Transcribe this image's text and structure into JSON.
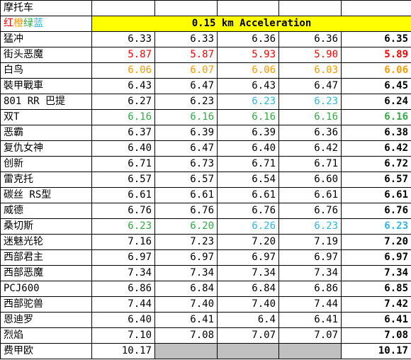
{
  "header": {
    "title": "摩托车"
  },
  "legend": [
    {
      "text": "红",
      "color": "#ff0000"
    },
    {
      "text": "橙",
      "color": "#ff9900"
    },
    {
      "text": "绿",
      "color": "#33aa44"
    },
    {
      "text": "蓝",
      "color": "#33b5e5"
    }
  ],
  "band_title": "0.15 km Acceleration",
  "colors": {
    "black": "#000000",
    "red": "#ff0000",
    "orange": "#ff9900",
    "green": "#33aa44",
    "blue": "#33b5e5",
    "band": "#ffff00",
    "gray": "#c0c0c0"
  },
  "rows": [
    {
      "name": "猛冲",
      "values": [
        "6.33",
        "6.33",
        "6.36",
        "6.36"
      ],
      "colors": [
        "black",
        "black",
        "black",
        "black"
      ],
      "final": "6.35",
      "final_color": "black"
    },
    {
      "name": "街头恶魔",
      "values": [
        "5.87",
        "5.87",
        "5.93",
        "5.90"
      ],
      "colors": [
        "red",
        "red",
        "red",
        "red"
      ],
      "final": "5.89",
      "final_color": "red"
    },
    {
      "name": "白鸟",
      "values": [
        "6.06",
        "6.07",
        "6.06",
        "6.03"
      ],
      "colors": [
        "orange",
        "orange",
        "orange",
        "orange"
      ],
      "final": "6.06",
      "final_color": "orange"
    },
    {
      "name": "裝甲戰車",
      "values": [
        "6.43",
        "6.47",
        "6.43",
        "6.47"
      ],
      "colors": [
        "black",
        "black",
        "black",
        "black"
      ],
      "final": "6.45",
      "final_color": "black"
    },
    {
      "name": "801 RR 巴提",
      "values": [
        "6.27",
        "6.23",
        "6.23",
        "6.23"
      ],
      "colors": [
        "black",
        "black",
        "blue",
        "blue"
      ],
      "final": "6.24",
      "final_color": "black"
    },
    {
      "name": "双T",
      "values": [
        "6.16",
        "6.16",
        "6.16",
        "6.16"
      ],
      "colors": [
        "green",
        "green",
        "green",
        "green"
      ],
      "final": "6.16",
      "final_color": "green"
    },
    {
      "name": "恶霸",
      "values": [
        "6.37",
        "6.39",
        "6.39",
        "6.36"
      ],
      "colors": [
        "black",
        "black",
        "black",
        "black"
      ],
      "final": "6.38",
      "final_color": "black"
    },
    {
      "name": "复仇女神",
      "values": [
        "6.40",
        "6.47",
        "6.40",
        "6.42"
      ],
      "colors": [
        "black",
        "black",
        "black",
        "black"
      ],
      "final": "6.42",
      "final_color": "black"
    },
    {
      "name": "创新",
      "values": [
        "6.71",
        "6.73",
        "6.71",
        "6.71"
      ],
      "colors": [
        "black",
        "black",
        "black",
        "black"
      ],
      "final": "6.72",
      "final_color": "black"
    },
    {
      "name": "雷克托",
      "values": [
        "6.57",
        "6.57",
        "6.54",
        "6.60"
      ],
      "colors": [
        "black",
        "black",
        "black",
        "black"
      ],
      "final": "6.57",
      "final_color": "black"
    },
    {
      "name": "碳丝 RS型",
      "values": [
        "6.61",
        "6.61",
        "6.61",
        "6.61"
      ],
      "colors": [
        "black",
        "black",
        "black",
        "black"
      ],
      "final": "6.61",
      "final_color": "black"
    },
    {
      "name": "威德",
      "values": [
        "6.76",
        "6.76",
        "6.76",
        "6.76"
      ],
      "colors": [
        "black",
        "black",
        "black",
        "black"
      ],
      "final": "6.76",
      "final_color": "black"
    },
    {
      "name": "桑切斯",
      "values": [
        "6.23",
        "6.20",
        "6.26",
        "6.23"
      ],
      "colors": [
        "green",
        "green",
        "blue",
        "blue"
      ],
      "final": "6.23",
      "final_color": "blue"
    },
    {
      "name": "迷魅光轮",
      "values": [
        "7.16",
        "7.23",
        "7.20",
        "7.19"
      ],
      "colors": [
        "black",
        "black",
        "black",
        "black"
      ],
      "final": "7.20",
      "final_color": "black"
    },
    {
      "name": "西部君主",
      "values": [
        "6.97",
        "6.97",
        "6.97",
        "6.97"
      ],
      "colors": [
        "black",
        "black",
        "black",
        "black"
      ],
      "final": "6.97",
      "final_color": "black"
    },
    {
      "name": "西部恶魔",
      "values": [
        "7.34",
        "7.34",
        "7.34",
        "7.34"
      ],
      "colors": [
        "black",
        "black",
        "black",
        "black"
      ],
      "final": "7.34",
      "final_color": "black"
    },
    {
      "name": "PCJ600",
      "values": [
        "6.86",
        "6.84",
        "6.84",
        "6.86"
      ],
      "colors": [
        "black",
        "black",
        "black",
        "black"
      ],
      "final": "6.85",
      "final_color": "black"
    },
    {
      "name": "西部驼兽",
      "values": [
        "7.44",
        "7.40",
        "7.40",
        "7.44"
      ],
      "colors": [
        "black",
        "black",
        "black",
        "black"
      ],
      "final": "7.42",
      "final_color": "black"
    },
    {
      "name": "恩迪罗",
      "values": [
        "6.40",
        "6.41",
        "6.4",
        "6.41"
      ],
      "colors": [
        "black",
        "black",
        "black",
        "black"
      ],
      "final": "6.41",
      "final_color": "black"
    },
    {
      "name": "烈焰",
      "values": [
        "7.10",
        "7.08",
        "7.07",
        "7.07"
      ],
      "colors": [
        "black",
        "black",
        "black",
        "black"
      ],
      "final": "7.08",
      "final_color": "black"
    },
    {
      "name": "费甲欧",
      "values": [
        "10.17",
        "",
        "",
        ""
      ],
      "colors": [
        "black",
        "gray",
        "gray",
        "gray"
      ],
      "final": "10.17",
      "final_color": "black"
    }
  ]
}
